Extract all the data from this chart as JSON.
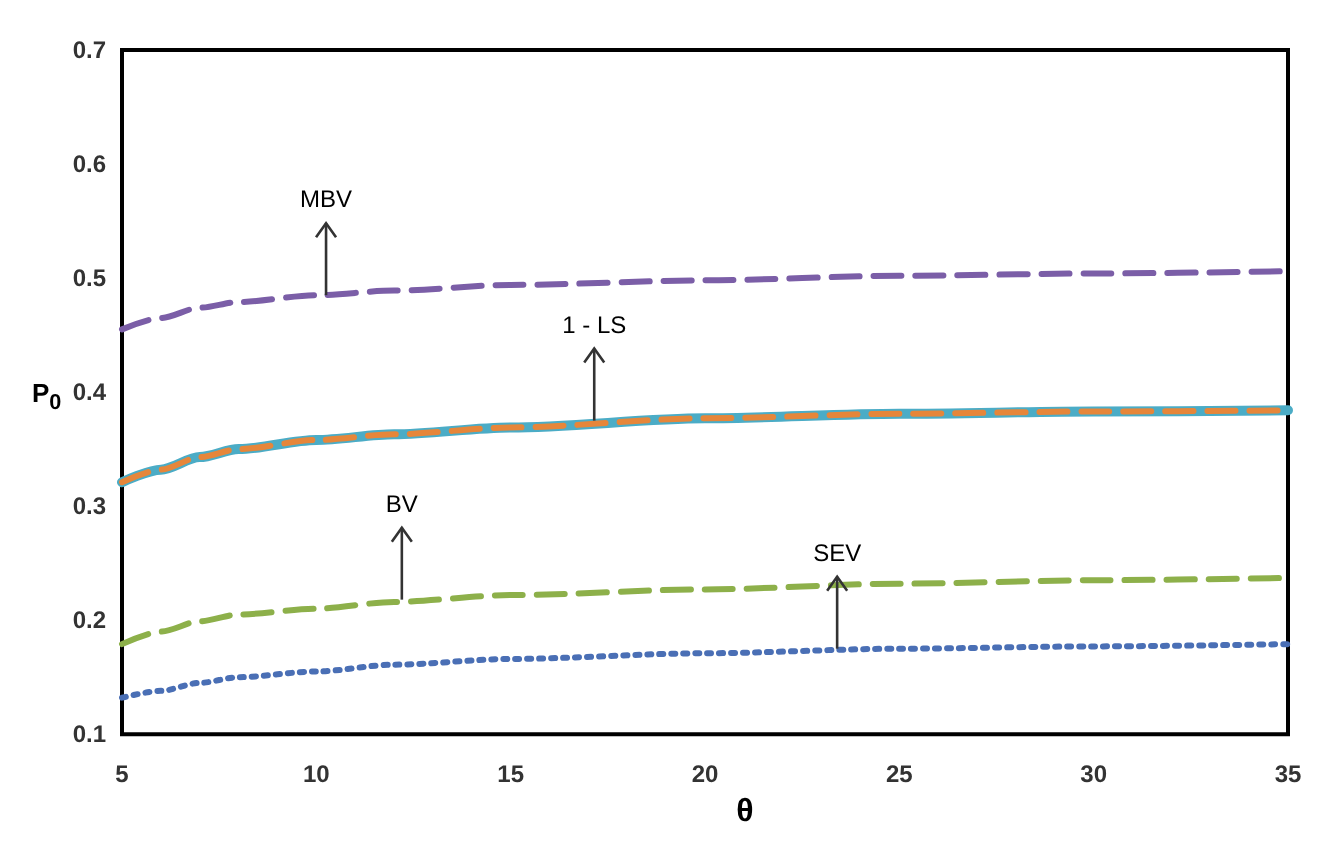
{
  "chart_data": {
    "type": "line",
    "xlabel": "θ",
    "ylabel": "P$_{0}$",
    "x": [
      5,
      6,
      7,
      8,
      10,
      12,
      15,
      20,
      25,
      30,
      35
    ],
    "xlim": [
      5,
      35
    ],
    "xticks": [
      5,
      10,
      15,
      20,
      25,
      30,
      35
    ],
    "ylim": [
      0.1,
      0.7
    ],
    "yticks": [
      0.1,
      0.2,
      0.3,
      0.4,
      0.5,
      0.6,
      0.7
    ],
    "grid": false,
    "marker": "none",
    "series": [
      {
        "color": "#7b5ea7",
        "line_style": "dashed",
        "values": [
          0.455,
          0.465,
          0.474,
          0.479,
          0.485,
          0.489,
          0.494,
          0.498,
          0.502,
          0.504,
          0.506
        ]
      },
      {
        "color": "#4bacc6",
        "line_style": "solid",
        "values": [
          0.321,
          0.332,
          0.343,
          0.35,
          0.358,
          0.363,
          0.369,
          0.377,
          0.381,
          0.383,
          0.384
        ]
      },
      {
        "color": "#e6863a",
        "line_style": "dashed",
        "values": [
          0.321,
          0.332,
          0.343,
          0.35,
          0.358,
          0.363,
          0.369,
          0.377,
          0.381,
          0.383,
          0.384
        ]
      },
      {
        "color": "#8db04a",
        "line_style": "dashed",
        "values": [
          0.179,
          0.19,
          0.199,
          0.205,
          0.21,
          0.216,
          0.222,
          0.227,
          0.232,
          0.235,
          0.237
        ]
      },
      {
        "color": "#4a6fb5",
        "line_style": "dotted",
        "values": [
          0.132,
          0.138,
          0.145,
          0.15,
          0.155,
          0.161,
          0.166,
          0.171,
          0.175,
          0.177,
          0.179
        ]
      }
    ],
    "annotations": [
      {
        "text": "MBV",
        "x": 10.25,
        "y": 0.485
      },
      {
        "text": "1 - LS",
        "x": 17.15,
        "y": 0.375
      },
      {
        "text": "BV",
        "x": 12.2,
        "y": 0.218
      },
      {
        "text": "SEV",
        "x": 23.4,
        "y": 0.175
      }
    ]
  }
}
